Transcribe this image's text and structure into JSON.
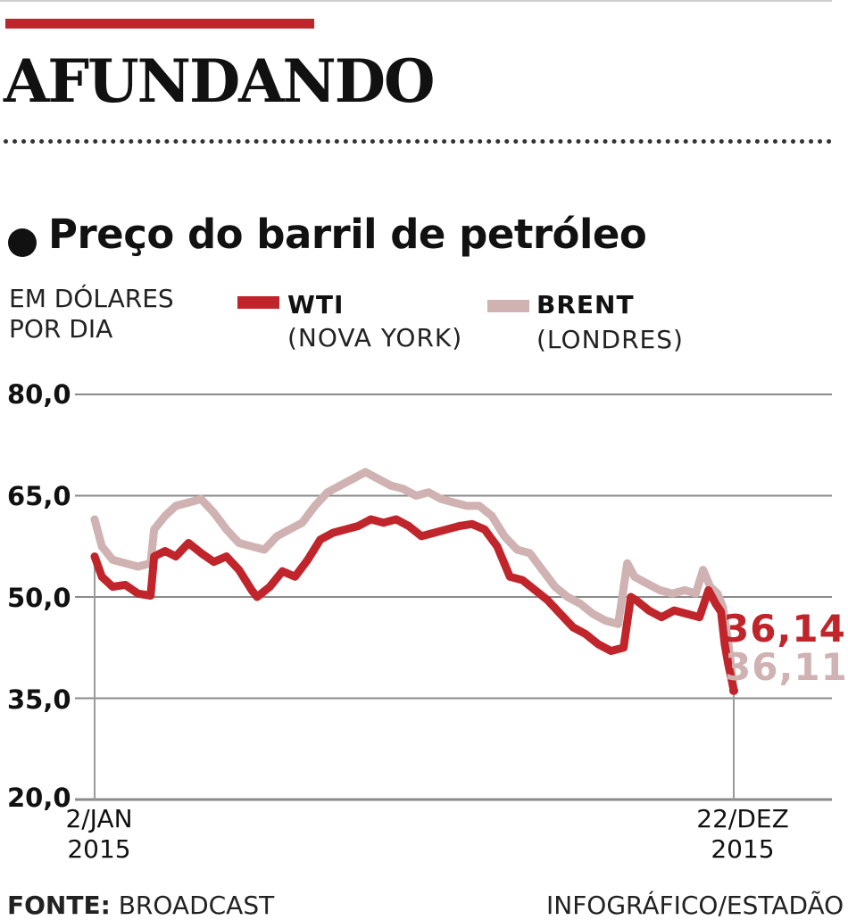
{
  "header": {
    "headline": "AFUNDANDO",
    "subtitle": "Preço do barril de petróleo"
  },
  "colors": {
    "accent": "#c0252b",
    "wti": "#c0252b",
    "brent": "#cfb2b1",
    "grid": "#8a8a8a"
  },
  "footer": {
    "source_label": "FONTE:",
    "source_value": "BROADCAST",
    "credit": "INFOGRÁFICO/ESTADÃO"
  },
  "chart_data": {
    "type": "line",
    "title": "Preço do barril de petróleo",
    "ylabel": "EM DÓLARES POR DIA",
    "ylim": [
      20,
      80
    ],
    "yticks": [
      "80,0",
      "65,0",
      "50,0",
      "35,0",
      "20,0"
    ],
    "ytick_values": [
      80,
      65,
      50,
      35,
      20
    ],
    "grid": true,
    "legend_position": "top",
    "x_range": [
      "2015-01-02",
      "2015-12-22"
    ],
    "x_labels": [
      {
        "date": "2015-01-02",
        "line1": "2/JAN",
        "line2": "2015"
      },
      {
        "date": "2015-12-22",
        "line1": "22/DEZ",
        "line2": "2015"
      }
    ],
    "series": [
      {
        "name": "WTI",
        "sub": "(NOVA YORK)",
        "color": "#c0252b",
        "end_label": "36,14",
        "points": [
          [
            "2015-01-02",
            56.0
          ],
          [
            "2015-01-06",
            53.0
          ],
          [
            "2015-01-12",
            51.5
          ],
          [
            "2015-01-19",
            51.8
          ],
          [
            "2015-01-26",
            50.5
          ],
          [
            "2015-02-02",
            50.2
          ],
          [
            "2015-02-04",
            56.0
          ],
          [
            "2015-02-10",
            56.8
          ],
          [
            "2015-02-16",
            56.0
          ],
          [
            "2015-02-23",
            58.0
          ],
          [
            "2015-03-02",
            56.5
          ],
          [
            "2015-03-09",
            55.2
          ],
          [
            "2015-03-16",
            56.0
          ],
          [
            "2015-03-23",
            54.0
          ],
          [
            "2015-03-30",
            51.0
          ],
          [
            "2015-04-02",
            50.0
          ],
          [
            "2015-04-09",
            51.5
          ],
          [
            "2015-04-16",
            53.8
          ],
          [
            "2015-04-23",
            53.0
          ],
          [
            "2015-04-30",
            55.5
          ],
          [
            "2015-05-07",
            58.5
          ],
          [
            "2015-05-14",
            59.5
          ],
          [
            "2015-05-21",
            60.0
          ],
          [
            "2015-05-28",
            60.5
          ],
          [
            "2015-06-04",
            61.5
          ],
          [
            "2015-06-11",
            61.0
          ],
          [
            "2015-06-18",
            61.5
          ],
          [
            "2015-06-25",
            60.5
          ],
          [
            "2015-07-02",
            59.0
          ],
          [
            "2015-07-09",
            59.5
          ],
          [
            "2015-07-16",
            60.0
          ],
          [
            "2015-07-23",
            60.5
          ],
          [
            "2015-07-30",
            60.8
          ],
          [
            "2015-08-06",
            60.0
          ],
          [
            "2015-08-13",
            57.5
          ],
          [
            "2015-08-20",
            53.0
          ],
          [
            "2015-08-27",
            52.5
          ],
          [
            "2015-09-03",
            51.0
          ],
          [
            "2015-09-10",
            49.5
          ],
          [
            "2015-09-17",
            47.5
          ],
          [
            "2015-09-24",
            45.5
          ],
          [
            "2015-10-01",
            44.5
          ],
          [
            "2015-10-08",
            43.0
          ],
          [
            "2015-10-15",
            42.0
          ],
          [
            "2015-10-22",
            42.5
          ],
          [
            "2015-10-26",
            50.0
          ],
          [
            "2015-10-29",
            49.5
          ],
          [
            "2015-11-05",
            48.0
          ],
          [
            "2015-11-12",
            47.0
          ],
          [
            "2015-11-19",
            48.0
          ],
          [
            "2015-11-26",
            47.5
          ],
          [
            "2015-12-03",
            47.0
          ],
          [
            "2015-12-08",
            51.0
          ],
          [
            "2015-12-12",
            49.0
          ],
          [
            "2015-12-15",
            47.8
          ],
          [
            "2015-12-17",
            43.0
          ],
          [
            "2015-12-19",
            40.0
          ],
          [
            "2015-12-21",
            37.5
          ],
          [
            "2015-12-22",
            36.14
          ]
        ]
      },
      {
        "name": "BRENT",
        "sub": "(LONDRES)",
        "color": "#cfb2b1",
        "end_label": "36,11",
        "points": [
          [
            "2015-01-02",
            61.5
          ],
          [
            "2015-01-06",
            57.5
          ],
          [
            "2015-01-12",
            55.5
          ],
          [
            "2015-01-19",
            55.0
          ],
          [
            "2015-01-26",
            54.5
          ],
          [
            "2015-02-02",
            55.0
          ],
          [
            "2015-02-04",
            60.0
          ],
          [
            "2015-02-10",
            62.0
          ],
          [
            "2015-02-16",
            63.5
          ],
          [
            "2015-02-23",
            64.0
          ],
          [
            "2015-03-02",
            64.5
          ],
          [
            "2015-03-09",
            62.5
          ],
          [
            "2015-03-16",
            60.0
          ],
          [
            "2015-03-23",
            58.0
          ],
          [
            "2015-03-30",
            57.5
          ],
          [
            "2015-04-06",
            57.0
          ],
          [
            "2015-04-13",
            59.0
          ],
          [
            "2015-04-20",
            60.0
          ],
          [
            "2015-04-27",
            61.0
          ],
          [
            "2015-05-04",
            63.5
          ],
          [
            "2015-05-11",
            65.5
          ],
          [
            "2015-05-18",
            66.5
          ],
          [
            "2015-05-25",
            67.5
          ],
          [
            "2015-06-01",
            68.5
          ],
          [
            "2015-06-08",
            67.5
          ],
          [
            "2015-06-15",
            66.5
          ],
          [
            "2015-06-22",
            66.0
          ],
          [
            "2015-06-29",
            65.0
          ],
          [
            "2015-07-06",
            65.5
          ],
          [
            "2015-07-13",
            64.5
          ],
          [
            "2015-07-20",
            64.0
          ],
          [
            "2015-07-27",
            63.5
          ],
          [
            "2015-08-03",
            63.5
          ],
          [
            "2015-08-10",
            62.0
          ],
          [
            "2015-08-17",
            59.0
          ],
          [
            "2015-08-24",
            57.0
          ],
          [
            "2015-08-31",
            56.5
          ],
          [
            "2015-09-07",
            54.0
          ],
          [
            "2015-09-14",
            51.5
          ],
          [
            "2015-09-21",
            50.0
          ],
          [
            "2015-09-28",
            49.0
          ],
          [
            "2015-10-05",
            47.5
          ],
          [
            "2015-10-12",
            46.5
          ],
          [
            "2015-10-19",
            46.0
          ],
          [
            "2015-10-24",
            55.0
          ],
          [
            "2015-10-28",
            53.0
          ],
          [
            "2015-11-04",
            52.0
          ],
          [
            "2015-11-11",
            51.0
          ],
          [
            "2015-11-18",
            50.5
          ],
          [
            "2015-11-25",
            51.0
          ],
          [
            "2015-12-01",
            50.5
          ],
          [
            "2015-12-05",
            54.0
          ],
          [
            "2015-12-09",
            51.5
          ],
          [
            "2015-12-13",
            50.5
          ],
          [
            "2015-12-16",
            48.5
          ],
          [
            "2015-12-18",
            45.0
          ],
          [
            "2015-12-20",
            41.0
          ],
          [
            "2015-12-21",
            38.5
          ],
          [
            "2015-12-22",
            36.11
          ]
        ]
      }
    ]
  }
}
